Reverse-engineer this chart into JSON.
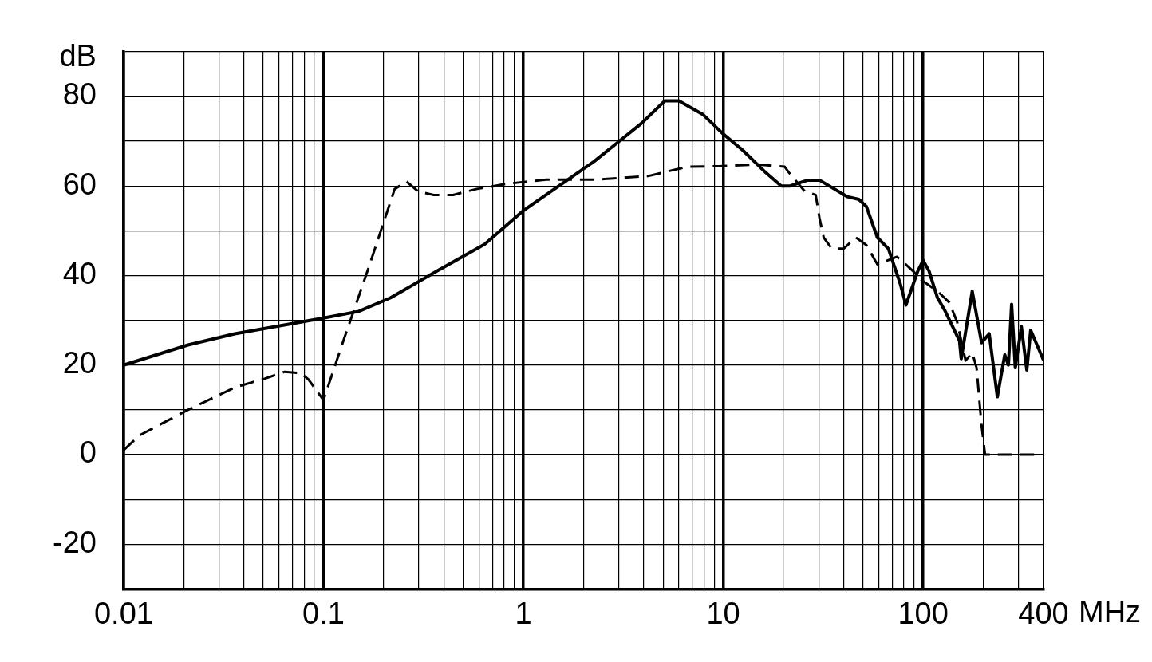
{
  "chart_data": {
    "type": "line",
    "xlabel": "MHz",
    "ylabel": "dB",
    "log": "x",
    "grid": true,
    "legend": false,
    "marker": "none",
    "xlim": [
      0.01,
      400
    ],
    "ylim": [
      -30,
      90
    ],
    "xticks": [
      0.01,
      {
        "value": 0.02,
        "label": null
      },
      {
        "value": 0.03,
        "label": null
      },
      {
        "value": 0.04,
        "label": null
      },
      {
        "value": 0.05,
        "label": null
      },
      {
        "value": 0.06,
        "label": null
      },
      {
        "value": 0.07,
        "label": null
      },
      {
        "value": 0.08,
        "label": null
      },
      {
        "value": 0.09,
        "label": null
      },
      0.1,
      {
        "value": 0.2,
        "label": null
      },
      {
        "value": 0.3,
        "label": null
      },
      {
        "value": 0.4,
        "label": null
      },
      {
        "value": 0.5,
        "label": null
      },
      {
        "value": 0.6,
        "label": null
      },
      {
        "value": 0.7,
        "label": null
      },
      {
        "value": 0.8,
        "label": null
      },
      {
        "value": 0.9,
        "label": null
      },
      1,
      {
        "value": 2,
        "label": null
      },
      {
        "value": 3,
        "label": null
      },
      {
        "value": 4,
        "label": null
      },
      {
        "value": 5,
        "label": null
      },
      {
        "value": 6,
        "label": null
      },
      {
        "value": 7,
        "label": null
      },
      {
        "value": 8,
        "label": null
      },
      {
        "value": 9,
        "label": null
      },
      10,
      {
        "value": 20,
        "label": null
      },
      {
        "value": 30,
        "label": null
      },
      {
        "value": 40,
        "label": null
      },
      {
        "value": 50,
        "label": null
      },
      {
        "value": 60,
        "label": null
      },
      {
        "value": 70,
        "label": null
      },
      {
        "value": 80,
        "label": null
      },
      {
        "value": 90,
        "label": null
      },
      100,
      {
        "value": 200,
        "label": null
      },
      {
        "value": 300,
        "label": null
      },
      400
    ],
    "yticks": [
      {
        "value": -30,
        "label": null
      },
      -20,
      {
        "value": -10,
        "label": null
      },
      0,
      {
        "value": 10,
        "label": null
      },
      20,
      {
        "value": 30,
        "label": null
      },
      40,
      {
        "value": 50,
        "label": null
      },
      60,
      {
        "value": 70,
        "label": null
      },
      80,
      {
        "value": 90,
        "label": null
      }
    ],
    "series": [
      {
        "color": "#000000",
        "line_style": "solid",
        "x": [
          0.01,
          0.021,
          0.036,
          0.1,
          0.15,
          0.216,
          0.37,
          0.64,
          1,
          2.26,
          3.9,
          5.1,
          6.0,
          7.9,
          10,
          12.5,
          16.3,
          19.5,
          21.6,
          26.5,
          30.3,
          41.8,
          47.7,
          52,
          59,
          67,
          77,
          82,
          94,
          100,
          107,
          118,
          129,
          152,
          155,
          176,
          196,
          214,
          235,
          256,
          267,
          277,
          289,
          310,
          330,
          345,
          400
        ],
        "values": [
          20,
          24.5,
          27,
          30.5,
          32,
          35,
          41,
          47,
          54.5,
          65.5,
          74,
          79,
          79,
          76,
          71.6,
          68,
          63,
          60,
          60,
          61.3,
          61.3,
          57.6,
          57,
          55.4,
          48.5,
          46,
          38,
          33.4,
          41,
          43.4,
          41,
          35,
          32,
          25.4,
          21.4,
          36.5,
          25,
          27,
          12.9,
          22.3,
          20,
          33.6,
          19.4,
          28.6,
          18.9,
          27.8,
          21.1
        ]
      },
      {
        "color": "#000000",
        "line_style": "dashed",
        "x": [
          0.01,
          0.012,
          0.021,
          0.036,
          0.051,
          0.064,
          0.077,
          0.084,
          0.1,
          0.127,
          0.166,
          0.227,
          0.26,
          0.297,
          0.356,
          0.445,
          0.58,
          0.83,
          1.3,
          2.26,
          4.2,
          6.6,
          9.5,
          14.8,
          20.3,
          21.3,
          25.6,
          29,
          30.3,
          31.8,
          34.9,
          40,
          46,
          52,
          59,
          74,
          89,
          98,
          118,
          135,
          148,
          163,
          176,
          185,
          196,
          204,
          359
        ],
        "values": [
          1,
          4.3,
          10,
          15,
          17,
          18.5,
          18.2,
          16.8,
          12.2,
          26,
          41,
          59.3,
          61,
          58.8,
          58,
          58,
          59.3,
          60.5,
          61.4,
          61.4,
          62.2,
          64.3,
          64.4,
          64.8,
          64.3,
          63,
          58.8,
          58,
          52.8,
          48.5,
          46,
          46,
          48.5,
          46.8,
          42.5,
          44.2,
          41,
          39,
          36.5,
          34,
          29.6,
          21,
          22.8,
          19.4,
          6.5,
          0,
          0
        ]
      }
    ]
  }
}
